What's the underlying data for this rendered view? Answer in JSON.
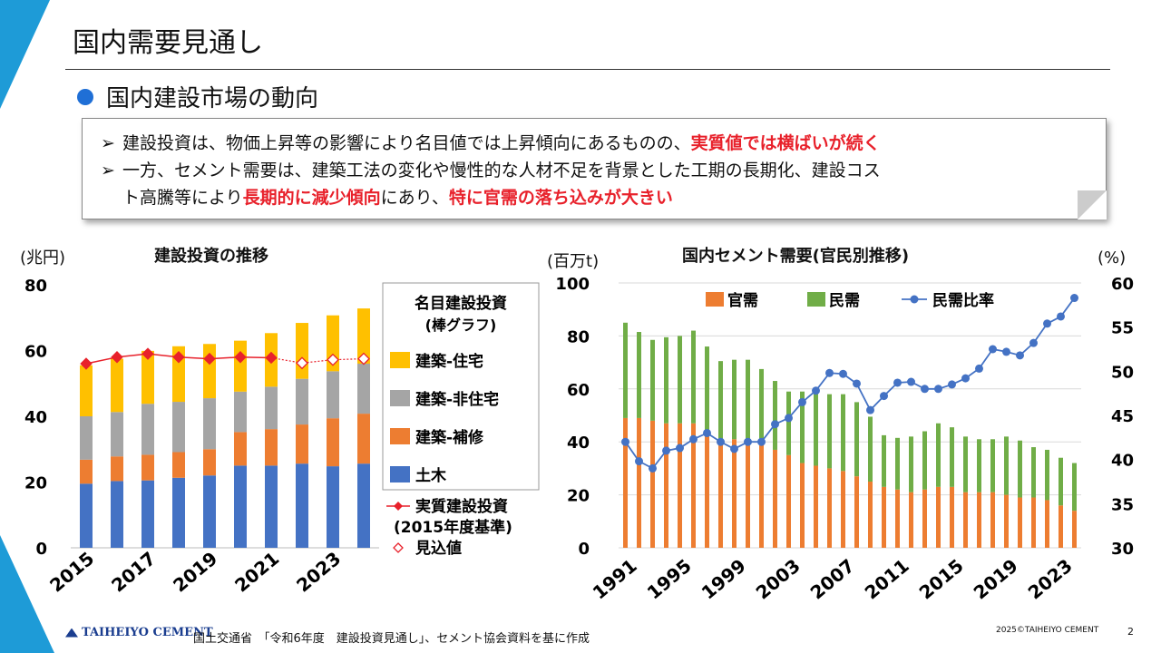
{
  "page": {
    "title": "国内需要見通し",
    "section": "国内建設市場の動向",
    "callout": {
      "line1_pre": "建設投資は、物価上昇等の影響により名目値では上昇傾向にあるものの、",
      "line1_red": "実質値では横ばいが続く",
      "line2_pre": "一方、セメント需要は、建築工法の変化や慢性的な人材不足を背景とした工期の長期化、建設コス",
      "line3_pre": "ト高騰等により",
      "line3_red1": "長期的に減少傾向",
      "line3_mid": "にあり、",
      "line3_red2": "特に官需の落ち込みが大きい"
    },
    "arrow_glyph": "➢",
    "footer": {
      "logo": "TAIHEIYO CEMENT",
      "source": "国土交通省　「令和6年度　建設投資見通し」、セメント協会資料を基に作成",
      "copyright": "2025©TAIHEIYO CEMENT",
      "page_number": "2"
    },
    "colors": {
      "accent": "#1e9bd7",
      "red": "#e8212b",
      "civil": "#4472c4",
      "repair": "#ed7d31",
      "nonres": "#a5a5a5",
      "res": "#ffc000",
      "private": "#70ad47",
      "ratio": "#4472c4"
    }
  },
  "chart_data": [
    {
      "type": "bar",
      "title": "建設投資の推移",
      "yunit": "(兆円)",
      "ylim": [
        0,
        80
      ],
      "yticks": [
        "0",
        "20",
        "40",
        "60",
        "80"
      ],
      "categories": [
        "2015",
        "2016",
        "2017",
        "2018",
        "2019",
        "2020",
        "2021",
        "2022",
        "2023",
        "2024"
      ],
      "xtick_labels": [
        "2015",
        "",
        "2017",
        "",
        "2019",
        "",
        "2021",
        "",
        "2023",
        ""
      ],
      "legend_title1": "名目建設投資",
      "legend_title2": "(棒グラフ)",
      "series": [
        {
          "name": "土木",
          "values": [
            19.5,
            20.3,
            20.5,
            21.3,
            22.0,
            25.0,
            25.0,
            25.6,
            24.8,
            25.6
          ]
        },
        {
          "name": "建築-補修",
          "values": [
            7.3,
            7.5,
            7.8,
            7.8,
            8.0,
            10.2,
            11.1,
            11.9,
            14.6,
            15.2
          ]
        },
        {
          "name": "建築-非住宅",
          "values": [
            13.2,
            13.5,
            15.5,
            15.3,
            15.5,
            12.3,
            12.9,
            13.9,
            14.3,
            15.2
          ]
        },
        {
          "name": "建築-住宅",
          "values": [
            15.5,
            16.2,
            16.1,
            16.9,
            16.5,
            15.5,
            16.3,
            17.0,
            17.0,
            16.8
          ]
        }
      ],
      "real_series": {
        "name1": "実質建設投資",
        "name2": "(2015年度基準)",
        "values": [
          56.0,
          58.0,
          59.0,
          58.0,
          57.5,
          58.0,
          57.8,
          56.2,
          57.2,
          57.5
        ],
        "estimate_name": "見込値",
        "estimate_from_index": 7
      }
    },
    {
      "type": "bar",
      "title": "国内セメント需要(官民別推移)",
      "yunit_left": "(百万t)",
      "yunit_right": "(%)",
      "ylim_left": [
        0,
        100
      ],
      "ylim_right": [
        30,
        60
      ],
      "yticks_left": [
        "0",
        "20",
        "40",
        "60",
        "80",
        "100"
      ],
      "yticks_right": [
        "30",
        "35",
        "40",
        "45",
        "50",
        "55",
        "60"
      ],
      "categories": [
        "1991",
        "1992",
        "1993",
        "1994",
        "1995",
        "1996",
        "1997",
        "1998",
        "1999",
        "2000",
        "2001",
        "2002",
        "2003",
        "2004",
        "2005",
        "2006",
        "2007",
        "2008",
        "2009",
        "2010",
        "2011",
        "2012",
        "2013",
        "2014",
        "2015",
        "2016",
        "2017",
        "2018",
        "2019",
        "2020",
        "2021",
        "2022",
        "2023",
        "2024"
      ],
      "xtick_labels": [
        "1991",
        "",
        "",
        "",
        "1995",
        "",
        "",
        "",
        "1999",
        "",
        "",
        "",
        "2003",
        "",
        "",
        "",
        "2007",
        "",
        "",
        "",
        "2011",
        "",
        "",
        "",
        "2015",
        "",
        "",
        "",
        "2019",
        "",
        "",
        "",
        "2023",
        ""
      ],
      "series": [
        {
          "name": "官需",
          "values": [
            49,
            49,
            48,
            47,
            47,
            47,
            44,
            41,
            41,
            40,
            40,
            37,
            35,
            32,
            31,
            30,
            29,
            27,
            25,
            23,
            22,
            21,
            22,
            23,
            23,
            21,
            21,
            21,
            20,
            19,
            19,
            18,
            16,
            14
          ]
        },
        {
          "name": "民需",
          "values": [
            36,
            32.5,
            30.5,
            32.5,
            33,
            35,
            32,
            29.5,
            30,
            31,
            27.5,
            26,
            24,
            27,
            28,
            28,
            29,
            28,
            24.5,
            19.5,
            19.5,
            21,
            22,
            24,
            22.5,
            21,
            20,
            20,
            22,
            21.5,
            19,
            19,
            18,
            18
          ]
        }
      ],
      "ratio_series": {
        "name": "民需比率",
        "values": [
          42,
          39.8,
          39,
          41,
          41.3,
          42.3,
          43,
          42,
          41.2,
          42,
          42,
          44,
          44.7,
          46.5,
          47.8,
          49.8,
          49.7,
          48.6,
          45.6,
          47.2,
          48.7,
          48.8,
          48,
          48,
          48.5,
          49.2,
          50.3,
          52.5,
          52.2,
          51.8,
          53.2,
          55.4,
          56.2,
          58.3
        ]
      }
    }
  ]
}
